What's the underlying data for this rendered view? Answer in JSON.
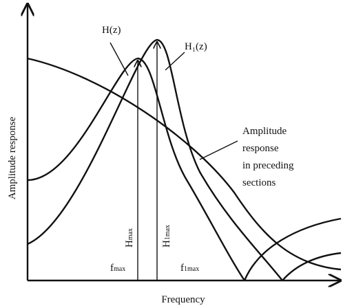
{
  "axes": {
    "x_label": "Frequency",
    "y_label": "Amplitude response"
  },
  "labels": {
    "h": "H(z)",
    "h1": "H₁(z)",
    "preceding": [
      "Amplitude",
      "response",
      "in preceding",
      "sections"
    ],
    "hmax": {
      "base": "H",
      "sub": "max"
    },
    "h1max": {
      "base": "H",
      "sub": "1max"
    },
    "fmax": {
      "base": "f",
      "sub": "max"
    },
    "f1max": {
      "base": "f",
      "sub": "1max"
    }
  }
}
